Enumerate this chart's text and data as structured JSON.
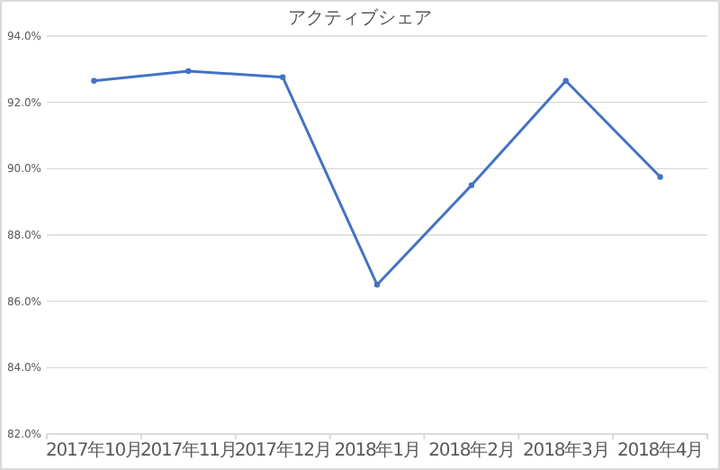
{
  "chart_data": {
    "type": "line",
    "title": "アクティブシェア",
    "categories": [
      "2017年10月",
      "2017年11月",
      "2017年12月",
      "2018年1月",
      "2018年2月",
      "2018年3月",
      "2018年4月"
    ],
    "series": [
      {
        "color": "#4472c4",
        "values": [
          92.65,
          92.94,
          92.76,
          86.5,
          89.5,
          92.65,
          89.75
        ]
      }
    ],
    "ylim": [
      82,
      94
    ],
    "yticks": [
      {
        "value": 82,
        "label": "82.0%"
      },
      {
        "value": 84,
        "label": "84.0%"
      },
      {
        "value": 86,
        "label": "86.0%"
      },
      {
        "value": 88,
        "label": "88.0%"
      },
      {
        "value": 90,
        "label": "90.0%"
      },
      {
        "value": 92,
        "label": "92.0%"
      },
      {
        "value": 94,
        "label": "94.0%"
      }
    ],
    "grid": "y",
    "marker": "circle",
    "line_style": "solid"
  }
}
